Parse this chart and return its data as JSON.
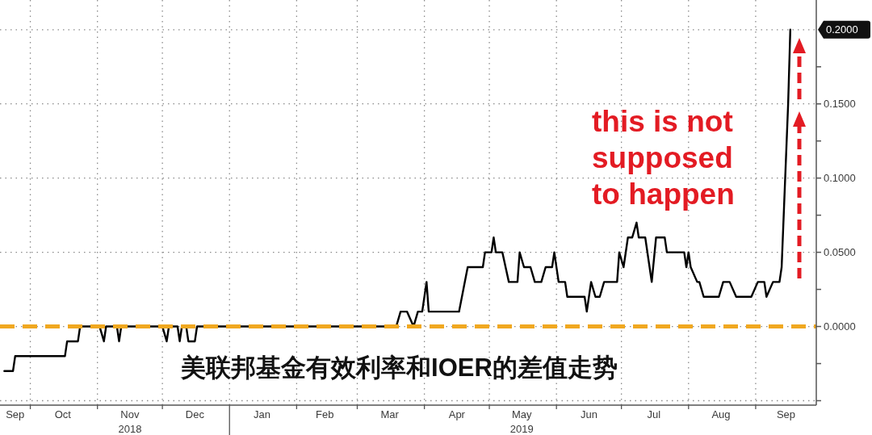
{
  "chart_data": {
    "type": "line",
    "title": "美联邦基金有效利率和IOER的差值走势",
    "annotations": [
      "this is not supposed to happen"
    ],
    "x": [
      "2018-09-19",
      "2018-09-23",
      "2018-09-24",
      "2018-10-17",
      "2018-10-18",
      "2018-10-23",
      "2018-10-24",
      "2018-11-02",
      "2018-11-04",
      "2018-11-05",
      "2018-11-10",
      "2018-11-11",
      "2018-11-12",
      "2018-12-01",
      "2018-12-03",
      "2018-12-04",
      "2018-12-08",
      "2018-12-09",
      "2018-12-10",
      "2018-12-12",
      "2018-12-13",
      "2018-12-16",
      "2018-12-17",
      "2019-03-19",
      "2019-03-21",
      "2019-03-24",
      "2019-03-27",
      "2019-03-29",
      "2019-03-31",
      "2019-04-02",
      "2019-04-03",
      "2019-04-17",
      "2019-04-21",
      "2019-04-28",
      "2019-04-29",
      "2019-05-02",
      "2019-05-03",
      "2019-05-04",
      "2019-05-07",
      "2019-05-10",
      "2019-05-14",
      "2019-05-15",
      "2019-05-17",
      "2019-05-20",
      "2019-05-22",
      "2019-05-25",
      "2019-05-27",
      "2019-05-30",
      "2019-05-31",
      "2019-06-02",
      "2019-06-05",
      "2019-06-06",
      "2019-06-14",
      "2019-06-15",
      "2019-06-17",
      "2019-06-19",
      "2019-06-21",
      "2019-06-23",
      "2019-06-29",
      "2019-06-30",
      "2019-07-02",
      "2019-07-04",
      "2019-07-06",
      "2019-07-08",
      "2019-07-09",
      "2019-07-12",
      "2019-07-15",
      "2019-07-17",
      "2019-07-21",
      "2019-07-22",
      "2019-07-30",
      "2019-07-31",
      "2019-08-01",
      "2019-08-02",
      "2019-08-05",
      "2019-08-06",
      "2019-08-08",
      "2019-08-15",
      "2019-08-17",
      "2019-08-20",
      "2019-08-23",
      "2019-08-30",
      "2019-09-02",
      "2019-09-05",
      "2019-09-06",
      "2019-09-09",
      "2019-09-12",
      "2019-09-13",
      "2019-09-16",
      "2019-09-17"
    ],
    "values": [
      -0.03,
      -0.03,
      -0.02,
      -0.02,
      -0.01,
      -0.01,
      0,
      0,
      -0.01,
      0,
      0,
      -0.01,
      0,
      0,
      -0.01,
      0,
      0,
      -0.01,
      0,
      0,
      -0.01,
      -0.01,
      0,
      0,
      0.01,
      0.01,
      0,
      0.01,
      0.01,
      0.03,
      0.01,
      0.01,
      0.04,
      0.04,
      0.05,
      0.05,
      0.06,
      0.05,
      0.05,
      0.03,
      0.03,
      0.05,
      0.04,
      0.04,
      0.03,
      0.03,
      0.04,
      0.04,
      0.05,
      0.03,
      0.03,
      0.02,
      0.02,
      0.01,
      0.03,
      0.02,
      0.02,
      0.03,
      0.03,
      0.05,
      0.04,
      0.06,
      0.06,
      0.07,
      0.06,
      0.06,
      0.03,
      0.06,
      0.06,
      0.05,
      0.05,
      0.04,
      0.05,
      0.04,
      0.03,
      0.03,
      0.02,
      0.02,
      0.03,
      0.03,
      0.02,
      0.02,
      0.03,
      0.03,
      0.02,
      0.03,
      0.03,
      0.04,
      0.15,
      0.2
    ],
    "color": "#000000",
    "line_style": "solid",
    "xlim": [
      "2018-09-17",
      "2019-09-29"
    ],
    "xticks": [
      {
        "value": "2018-10-01",
        "label": null
      },
      {
        "value": "2018-11-01",
        "label": null
      },
      {
        "value": "2018-12-01",
        "label": null
      },
      {
        "value": "2019-01-01",
        "label": null
      },
      {
        "value": "2019-02-01",
        "label": null
      },
      {
        "value": "2019-03-01",
        "label": null
      },
      {
        "value": "2019-04-01",
        "label": null
      },
      {
        "value": "2019-05-01",
        "label": null
      },
      {
        "value": "2019-06-01",
        "label": null
      },
      {
        "value": "2019-07-01",
        "label": null
      },
      {
        "value": "2019-08-01",
        "label": null
      },
      {
        "value": "2019-09-01",
        "label": null
      },
      {
        "value": "2018-09-24",
        "label": "Sep"
      },
      {
        "value": "2018-10-16",
        "label": "Oct"
      },
      {
        "value": "2018-11-16",
        "label": "Nov\n2018"
      },
      {
        "value": "2018-12-16",
        "label": "Dec"
      },
      {
        "value": "2019-01-16",
        "label": "Jan"
      },
      {
        "value": "2019-02-14",
        "label": "Feb"
      },
      {
        "value": "2019-03-16",
        "label": "Mar"
      },
      {
        "value": "2019-04-16",
        "label": "Apr"
      },
      {
        "value": "2019-05-16",
        "label": "May\n2019"
      },
      {
        "value": "2019-06-16",
        "label": "Jun"
      },
      {
        "value": "2019-07-16",
        "label": "Jul"
      },
      {
        "value": "2019-08-16",
        "label": "Aug"
      },
      {
        "value": "2019-09-15",
        "label": "Sep"
      }
    ],
    "ylim": [
      -0.053,
      0.22
    ],
    "yticks": [
      {
        "value": -0.05,
        "label": null
      },
      {
        "value": -0.025,
        "label": null
      },
      {
        "value": 0,
        "label": "0.0000"
      },
      {
        "value": 0.025,
        "label": null
      },
      {
        "value": 0.05,
        "label": "0.0500"
      },
      {
        "value": 0.075,
        "label": null
      },
      {
        "value": 0.1,
        "label": "0.1000"
      },
      {
        "value": 0.125,
        "label": null
      },
      {
        "value": 0.15,
        "label": "0.1500"
      },
      {
        "value": 0.175,
        "label": null
      },
      {
        "value": 0.2,
        "label": "0.2000"
      }
    ],
    "grid": true,
    "ref_lines": [
      {
        "axis": "y",
        "value": 0,
        "color": "#f0a820",
        "line_style": "dashed"
      }
    ]
  }
}
